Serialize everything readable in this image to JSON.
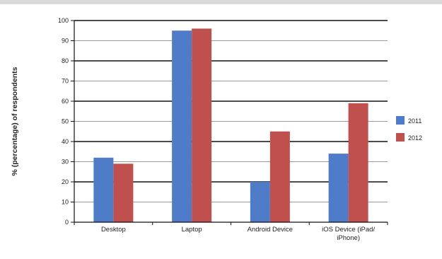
{
  "chart_data": {
    "type": "bar",
    "title": "",
    "xlabel": "",
    "ylabel": "% (percentage) of respondents",
    "ylim": [
      0,
      100
    ],
    "yticks": [
      0,
      10,
      20,
      30,
      40,
      50,
      60,
      70,
      80,
      90,
      100
    ],
    "grid": true,
    "legend_position": "right",
    "categories": [
      "Desktop",
      "Laptop",
      "Android Device",
      "iOS Device (iPad/ iPhone)"
    ],
    "series": [
      {
        "name": "2011",
        "color": "#4f7cc8",
        "values": [
          32,
          95,
          20,
          34
        ]
      },
      {
        "name": "2012",
        "color": "#c0504d",
        "values": [
          29,
          96,
          45,
          59
        ]
      }
    ]
  }
}
